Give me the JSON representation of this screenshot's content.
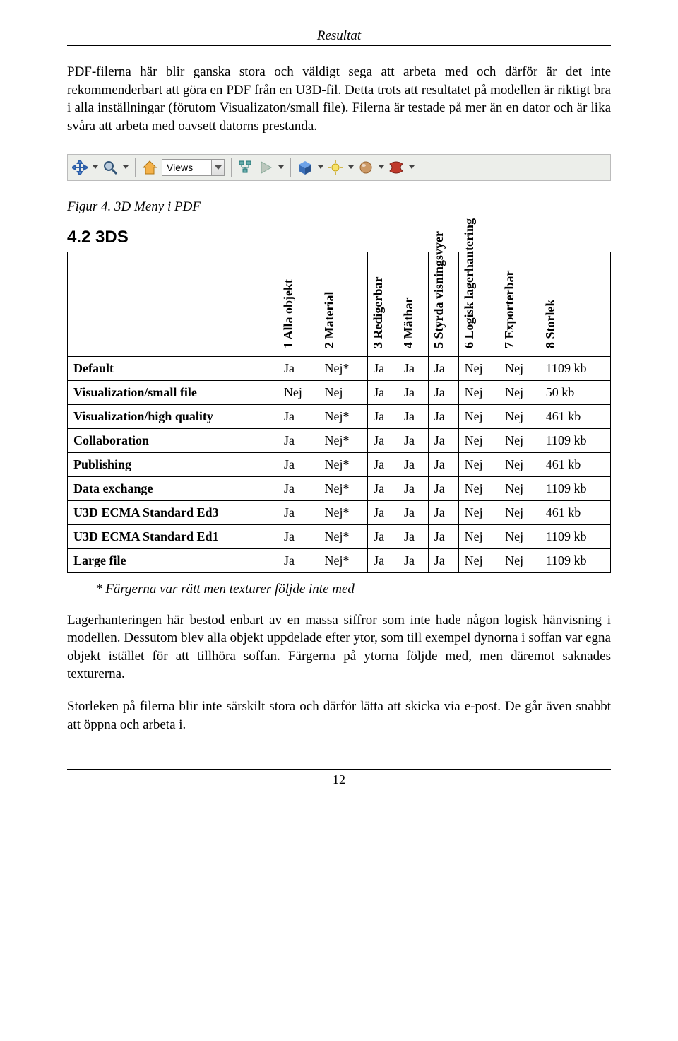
{
  "header": {
    "title": "Resultat"
  },
  "para1": "PDF-filerna här blir ganska stora och väldigt sega att arbeta med och därför är det inte rekommenderbart att göra en PDF från en U3D-fil. Detta trots att resultatet på modellen är riktigt bra i alla inställningar (förutom Visualizaton/small file). Filerna är testade på mer än en dator och är lika svåra att arbeta med oavsett datorns prestanda.",
  "toolbar": {
    "views_label": "Views"
  },
  "figure_caption": "Figur 4. 3D Meny i PDF",
  "section_heading": "4.2 3DS",
  "table": {
    "col_headers": [
      "1 Alla objekt",
      "2 Material",
      "3 Redigerbar",
      "4 Mätbar",
      "5 Styrda visningsvyer",
      "6 Logisk lagerhantering",
      "7 Exporterbar",
      "8 Storlek"
    ],
    "rows": [
      {
        "label": "Default",
        "cells": [
          "Ja",
          "Nej*",
          "Ja",
          "Ja",
          "Ja",
          "Nej",
          "Nej",
          "1109 kb"
        ]
      },
      {
        "label": "Visualization/small file",
        "cells": [
          "Nej",
          "Nej",
          "Ja",
          "Ja",
          "Ja",
          "Nej",
          "Nej",
          "50 kb"
        ]
      },
      {
        "label": "Visualization/high quality",
        "cells": [
          "Ja",
          "Nej*",
          "Ja",
          "Ja",
          "Ja",
          "Nej",
          "Nej",
          "461 kb"
        ]
      },
      {
        "label": "Collaboration",
        "cells": [
          "Ja",
          "Nej*",
          "Ja",
          "Ja",
          "Ja",
          "Nej",
          "Nej",
          "1109 kb"
        ]
      },
      {
        "label": "Publishing",
        "cells": [
          "Ja",
          "Nej*",
          "Ja",
          "Ja",
          "Ja",
          "Nej",
          "Nej",
          "461 kb"
        ]
      },
      {
        "label": "Data exchange",
        "cells": [
          "Ja",
          "Nej*",
          "Ja",
          "Ja",
          "Ja",
          "Nej",
          "Nej",
          "1109 kb"
        ]
      },
      {
        "label": "U3D ECMA Standard Ed3",
        "cells": [
          "Ja",
          "Nej*",
          "Ja",
          "Ja",
          "Ja",
          "Nej",
          "Nej",
          "461 kb"
        ]
      },
      {
        "label": "U3D ECMA Standard Ed1",
        "cells": [
          "Ja",
          "Nej*",
          "Ja",
          "Ja",
          "Ja",
          "Nej",
          "Nej",
          "1109 kb"
        ]
      },
      {
        "label": "Large file",
        "cells": [
          "Ja",
          "Nej*",
          "Ja",
          "Ja",
          "Ja",
          "Nej",
          "Nej",
          "1109 kb"
        ]
      }
    ]
  },
  "footnote": "* Färgerna var rätt men texturer följde inte med",
  "para2": "Lagerhanteringen här bestod enbart av en massa siffror som inte hade någon logisk hänvisning i modellen. Dessutom blev alla objekt uppdelade efter ytor, som till exempel dynorna i soffan var egna objekt istället för att tillhöra soffan. Färgerna på ytorna följde med, men däremot saknades texturerna.",
  "para3": "Storleken på filerna blir inte särskilt stora och därför lätta att skicka via e-post. De går även snabbt att öppna och arbeta i.",
  "page_number": "12"
}
